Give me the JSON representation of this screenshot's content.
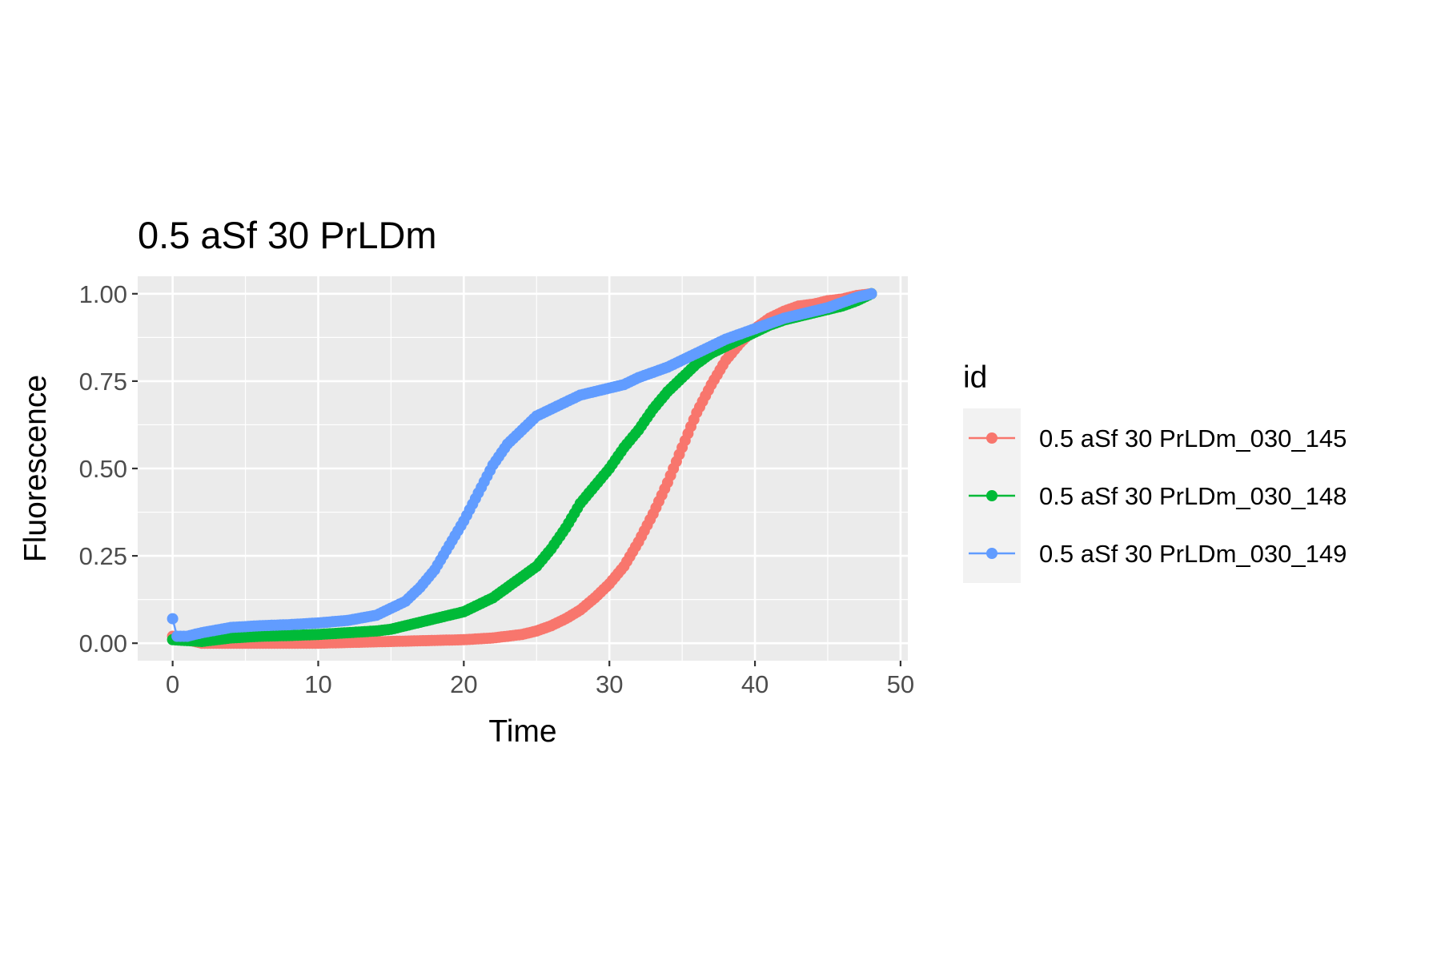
{
  "chart_data": {
    "type": "line",
    "title": "0.5 aSf 30 PrLDm",
    "xlabel": "Time",
    "ylabel": "Fluorescence",
    "xlim": [
      -2.4,
      50.5
    ],
    "ylim": [
      -0.05,
      1.05
    ],
    "xticks": [
      0,
      10,
      20,
      30,
      40,
      50
    ],
    "xtick_labels": [
      "0",
      "10",
      "20",
      "30",
      "40",
      "50"
    ],
    "yticks": [
      0,
      0.25,
      0.5,
      0.75,
      1
    ],
    "ytick_labels": [
      "0.00",
      "0.25",
      "0.50",
      "0.75",
      "1.00"
    ],
    "grid": true,
    "legend_title": "id",
    "legend_position": "right",
    "series": [
      {
        "name": "0.5 aSf 30 PrLDm_030_145",
        "color": "#F8766D",
        "points": [
          [
            0,
            0.02
          ],
          [
            2,
            0.0
          ],
          [
            5,
            0.0
          ],
          [
            10,
            0.0
          ],
          [
            15,
            0.005
          ],
          [
            20,
            0.01
          ],
          [
            22,
            0.015
          ],
          [
            24,
            0.025
          ],
          [
            25,
            0.035
          ],
          [
            26,
            0.05
          ],
          [
            27,
            0.07
          ],
          [
            28,
            0.095
          ],
          [
            29,
            0.13
          ],
          [
            30,
            0.17
          ],
          [
            31,
            0.22
          ],
          [
            32,
            0.29
          ],
          [
            33,
            0.37
          ],
          [
            34,
            0.46
          ],
          [
            35,
            0.56
          ],
          [
            36,
            0.66
          ],
          [
            37,
            0.74
          ],
          [
            38,
            0.81
          ],
          [
            39,
            0.86
          ],
          [
            40,
            0.9
          ],
          [
            41,
            0.93
          ],
          [
            42,
            0.95
          ],
          [
            43,
            0.965
          ],
          [
            44,
            0.97
          ],
          [
            45,
            0.98
          ],
          [
            46,
            0.985
          ],
          [
            47,
            0.995
          ],
          [
            48,
            1.0
          ]
        ]
      },
      {
        "name": "0.5 aSf 30 PrLDm_030_148",
        "color": "#00BA38",
        "points": [
          [
            0,
            0.01
          ],
          [
            2,
            0.005
          ],
          [
            4,
            0.015
          ],
          [
            6,
            0.02
          ],
          [
            8,
            0.022
          ],
          [
            10,
            0.025
          ],
          [
            12,
            0.03
          ],
          [
            14,
            0.035
          ],
          [
            15,
            0.04
          ],
          [
            16,
            0.05
          ],
          [
            18,
            0.07
          ],
          [
            20,
            0.09
          ],
          [
            21,
            0.11
          ],
          [
            22,
            0.13
          ],
          [
            23,
            0.16
          ],
          [
            24,
            0.19
          ],
          [
            25,
            0.22
          ],
          [
            26,
            0.27
          ],
          [
            27,
            0.33
          ],
          [
            28,
            0.4
          ],
          [
            29,
            0.45
          ],
          [
            30,
            0.5
          ],
          [
            31,
            0.56
          ],
          [
            32,
            0.61
          ],
          [
            33,
            0.67
          ],
          [
            34,
            0.72
          ],
          [
            35,
            0.76
          ],
          [
            36,
            0.8
          ],
          [
            37,
            0.83
          ],
          [
            38,
            0.85
          ],
          [
            39,
            0.87
          ],
          [
            40,
            0.89
          ],
          [
            41,
            0.91
          ],
          [
            42,
            0.925
          ],
          [
            43,
            0.935
          ],
          [
            44,
            0.945
          ],
          [
            45,
            0.955
          ],
          [
            46,
            0.965
          ],
          [
            47,
            0.98
          ],
          [
            48,
            1.0
          ]
        ]
      },
      {
        "name": "0.5 aSf 30 PrLDm_030_149",
        "color": "#619CFF",
        "points": [
          [
            0,
            0.07
          ],
          [
            0.3,
            0.02
          ],
          [
            1,
            0.02
          ],
          [
            2,
            0.03
          ],
          [
            4,
            0.045
          ],
          [
            6,
            0.05
          ],
          [
            8,
            0.053
          ],
          [
            10,
            0.058
          ],
          [
            12,
            0.065
          ],
          [
            14,
            0.08
          ],
          [
            15,
            0.1
          ],
          [
            16,
            0.12
          ],
          [
            17,
            0.16
          ],
          [
            18,
            0.21
          ],
          [
            19,
            0.28
          ],
          [
            20,
            0.35
          ],
          [
            21,
            0.43
          ],
          [
            22,
            0.51
          ],
          [
            23,
            0.57
          ],
          [
            24,
            0.61
          ],
          [
            25,
            0.65
          ],
          [
            26,
            0.67
          ],
          [
            27,
            0.69
          ],
          [
            28,
            0.71
          ],
          [
            29,
            0.72
          ],
          [
            30,
            0.73
          ],
          [
            31,
            0.74
          ],
          [
            32,
            0.76
          ],
          [
            33,
            0.775
          ],
          [
            34,
            0.79
          ],
          [
            35,
            0.81
          ],
          [
            36,
            0.83
          ],
          [
            37,
            0.85
          ],
          [
            38,
            0.87
          ],
          [
            39,
            0.885
          ],
          [
            40,
            0.9
          ],
          [
            41,
            0.915
          ],
          [
            42,
            0.93
          ],
          [
            43,
            0.94
          ],
          [
            44,
            0.95
          ],
          [
            45,
            0.96
          ],
          [
            46,
            0.975
          ],
          [
            47,
            0.99
          ],
          [
            48,
            1.0
          ]
        ]
      }
    ]
  }
}
